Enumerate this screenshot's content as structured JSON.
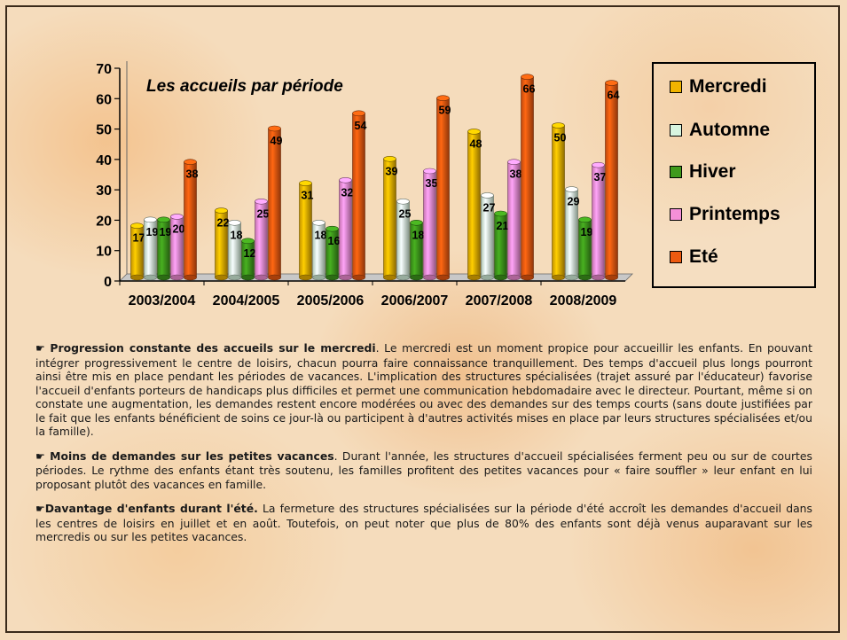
{
  "chart_data": {
    "type": "bar",
    "title": "Les accueils par période",
    "categories": [
      "2003/2004",
      "2004/2005",
      "2005/2006",
      "2006/2007",
      "2007/2008",
      "2008/2009"
    ],
    "series": [
      {
        "name": "Mercredi",
        "color": "#f0b400",
        "values": [
          17,
          22,
          31,
          39,
          48,
          50
        ]
      },
      {
        "name": "Automne",
        "color": "#d8f5e0",
        "values": [
          19,
          18,
          18,
          25,
          27,
          29
        ]
      },
      {
        "name": "Hiver",
        "color": "#3f9a1c",
        "values": [
          19,
          12,
          16,
          18,
          21,
          19
        ]
      },
      {
        "name": "Printemps",
        "color": "#f58fd8",
        "values": [
          20,
          25,
          32,
          35,
          38,
          37
        ]
      },
      {
        "name": "Eté",
        "color": "#ee5a10",
        "values": [
          38,
          49,
          54,
          59,
          66,
          64
        ]
      }
    ],
    "ylim": [
      0,
      70
    ],
    "yticks": [
      0,
      10,
      20,
      30,
      40,
      50,
      60,
      70
    ],
    "xlabel": "",
    "ylabel": "",
    "legend_position": "right",
    "grid": false,
    "style": "3d-cylinder"
  },
  "paragraphs": [
    {
      "icon": "pointing-hand-icon",
      "bold": "Progression constante des accueils sur le mercredi",
      "text": ". Le mercredi est un moment propice pour accueillir les enfants. En pouvant intégrer progressivement le centre de loisirs, chacun pourra faire connaissance tranquillement. Des temps d'accueil plus longs pourront ainsi être mis en place pendant les périodes de vacances. L'implication des structures spécialisées (trajet assuré par l'éducateur) favorise l'accueil d'enfants porteurs de handicaps plus difficiles et permet une communication hebdomadaire avec le directeur. Pourtant, même si on constate une augmentation, les demandes restent encore modérées ou avec des demandes sur des temps courts (sans doute justifiées par le fait que les enfants bénéficient de soins ce jour-là ou participent à d'autres activités mises en place par leurs structures spécialisées et/ou la famille)."
    },
    {
      "icon": "pointing-hand-icon",
      "bold": "Moins de demandes sur les petites vacances",
      "text": ". Durant l'année, les structures d'accueil spécialisées ferment peu ou sur de courtes périodes. Le rythme des enfants étant très soutenu, les familles profitent des petites vacances pour « faire souffler » leur enfant en lui proposant plutôt des vacances en famille."
    },
    {
      "icon": "pointing-hand-icon",
      "bold": "Davantage d'enfants durant l'été.",
      "text": " La fermeture des structures spécialisées sur la période d'été accroît les demandes d'accueil dans les centres de loisirs en juillet et en août. Toutefois, on peut noter que plus de 80% des enfants sont déjà venus auparavant sur les mercredis ou sur les petites vacances."
    }
  ]
}
